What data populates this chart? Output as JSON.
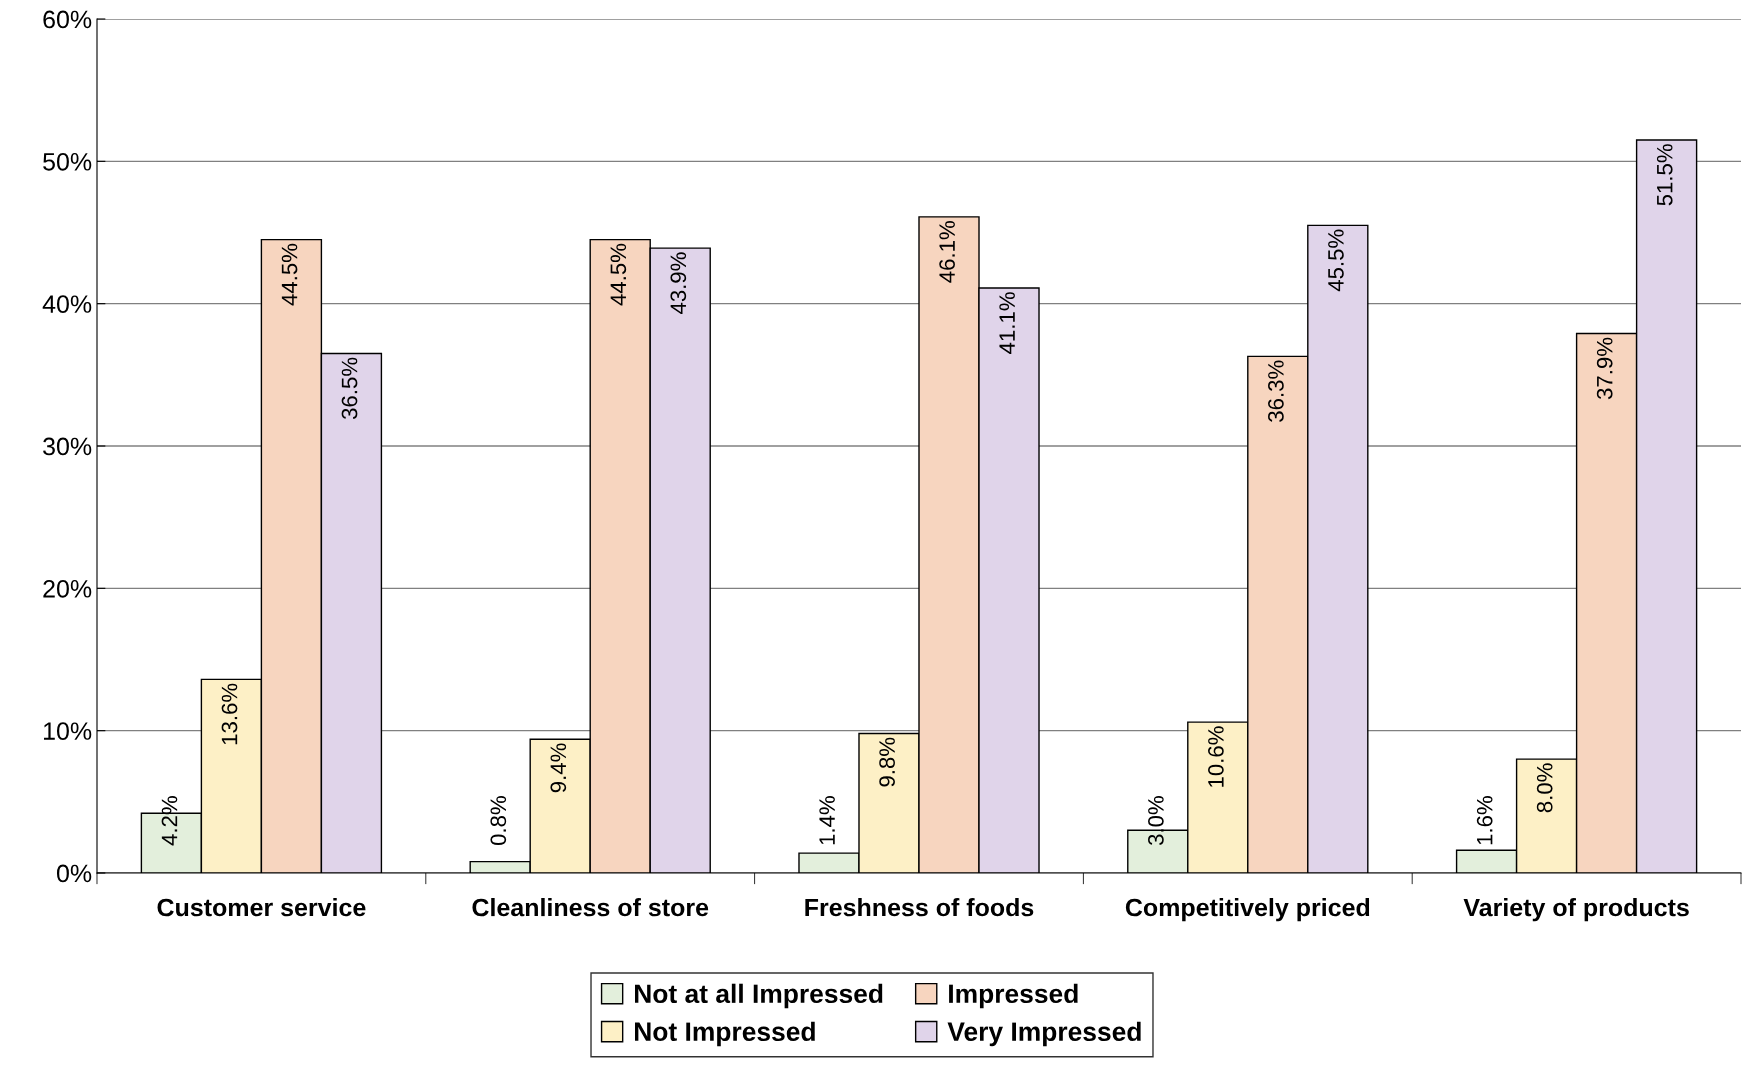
{
  "chart_data": {
    "type": "bar",
    "categories": [
      "Customer service",
      "Cleanliness of store",
      "Freshness of foods",
      "Competitively priced",
      "Variety of products"
    ],
    "series": [
      {
        "name": "Not at all Impressed",
        "color": "#e3efdc",
        "values": [
          4.2,
          0.8,
          1.4,
          3.0,
          1.6
        ],
        "value_labels": [
          "4.2%",
          "0.8%",
          "1.4%",
          "3.0%",
          "1.6%"
        ]
      },
      {
        "name": "Not Impressed",
        "color": "#fdf0c6",
        "values": [
          13.6,
          9.4,
          9.8,
          10.6,
          8.0
        ],
        "value_labels": [
          "13.6%",
          "9.4%",
          "9.8%",
          "10.6%",
          "8.0%"
        ]
      },
      {
        "name": "Impressed",
        "color": "#f7d5bf",
        "values": [
          44.5,
          44.5,
          46.1,
          36.3,
          37.9
        ],
        "value_labels": [
          "44.5%",
          "44.5%",
          "46.1%",
          "36.3%",
          "37.9%"
        ]
      },
      {
        "name": "Very Impressed",
        "color": "#e0d4ea",
        "values": [
          36.5,
          43.9,
          41.1,
          45.5,
          51.5
        ],
        "value_labels": [
          "36.5%",
          "43.9%",
          "41.1%",
          "45.5%",
          "51.5%"
        ]
      }
    ],
    "ylim": [
      0,
      60
    ],
    "yticks": [
      {
        "value": 0,
        "label": "0%"
      },
      {
        "value": 10,
        "label": "10%"
      },
      {
        "value": 20,
        "label": "20%"
      },
      {
        "value": 30,
        "label": "30%"
      },
      {
        "value": 40,
        "label": "40%"
      },
      {
        "value": 50,
        "label": "50%"
      },
      {
        "value": 60,
        "label": "60%"
      }
    ],
    "grid": "y",
    "legend": "bottom"
  }
}
